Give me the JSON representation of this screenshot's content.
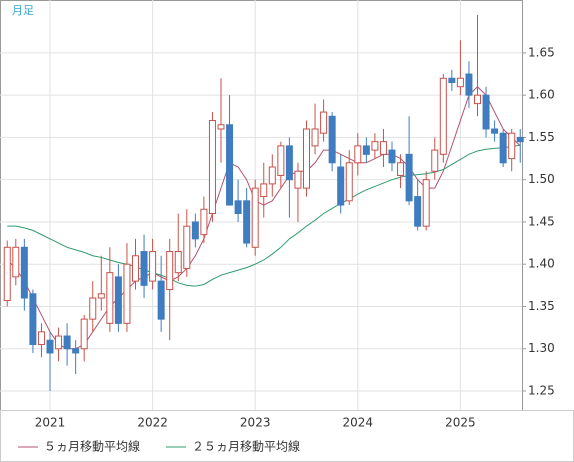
{
  "chart_data": {
    "type": "candlestick",
    "label": "月足",
    "categories": [
      null,
      null,
      null,
      null,
      null,
      "2021",
      null,
      null,
      null,
      null,
      null,
      null,
      null,
      null,
      null,
      null,
      null,
      "2022",
      null,
      null,
      null,
      null,
      null,
      null,
      null,
      null,
      null,
      null,
      null,
      "2023",
      null,
      null,
      null,
      null,
      null,
      null,
      null,
      null,
      null,
      null,
      null,
      "2024",
      null,
      null,
      null,
      null,
      null,
      null,
      null,
      null,
      null,
      null,
      null,
      "2025",
      null,
      null,
      null,
      null,
      null,
      null,
      null
    ],
    "open": [
      1.357,
      1.385,
      1.42,
      1.365,
      1.305,
      1.31,
      1.3,
      1.315,
      1.3,
      1.3,
      1.335,
      1.36,
      1.33,
      1.385,
      1.33,
      1.38,
      1.415,
      1.38,
      1.38,
      1.37,
      1.39,
      1.395,
      1.45,
      1.435,
      1.46,
      1.56,
      1.565,
      1.475,
      1.475,
      1.42,
      1.48,
      1.495,
      1.505,
      1.54,
      1.49,
      1.49,
      1.54,
      1.555,
      1.575,
      1.515,
      1.475,
      1.52,
      1.54,
      1.535,
      1.53,
      1.535,
      1.505,
      1.53,
      1.48,
      1.445,
      1.51,
      1.53,
      1.62,
      1.61,
      1.625,
      1.59,
      1.6,
      1.56,
      1.555,
      1.525,
      1.55
    ],
    "high": [
      1.428,
      1.43,
      1.43,
      1.37,
      1.33,
      1.32,
      1.325,
      1.33,
      1.31,
      1.34,
      1.38,
      1.41,
      1.42,
      1.4,
      1.425,
      1.43,
      1.435,
      1.43,
      1.41,
      1.43,
      1.46,
      1.465,
      1.46,
      1.48,
      1.58,
      1.62,
      1.6,
      1.5,
      1.49,
      1.5,
      1.52,
      1.53,
      1.545,
      1.55,
      1.52,
      1.57,
      1.59,
      1.595,
      1.58,
      1.53,
      1.535,
      1.555,
      1.55,
      1.555,
      1.56,
      1.545,
      1.53,
      1.575,
      1.5,
      1.51,
      1.55,
      1.625,
      1.63,
      1.665,
      1.64,
      1.695,
      1.61,
      1.57,
      1.56,
      1.56,
      1.56
    ],
    "low": [
      1.35,
      1.375,
      1.345,
      1.295,
      1.29,
      1.25,
      1.285,
      1.28,
      1.27,
      1.285,
      1.32,
      1.345,
      1.32,
      1.32,
      1.32,
      1.37,
      1.36,
      1.37,
      1.32,
      1.31,
      1.38,
      1.385,
      1.42,
      1.425,
      1.45,
      1.52,
      1.47,
      1.45,
      1.42,
      1.41,
      1.455,
      1.48,
      1.49,
      1.455,
      1.45,
      1.48,
      1.53,
      1.545,
      1.51,
      1.46,
      1.47,
      1.505,
      1.52,
      1.525,
      1.515,
      1.51,
      1.49,
      1.47,
      1.44,
      1.44,
      1.5,
      1.52,
      1.605,
      1.6,
      1.585,
      1.575,
      1.55,
      1.545,
      1.515,
      1.51,
      1.52
    ],
    "close": [
      1.42,
      1.42,
      1.36,
      1.305,
      1.32,
      1.295,
      1.315,
      1.3,
      1.295,
      1.335,
      1.36,
      1.365,
      1.39,
      1.33,
      1.4,
      1.41,
      1.375,
      1.415,
      1.335,
      1.415,
      1.415,
      1.445,
      1.43,
      1.465,
      1.57,
      1.565,
      1.47,
      1.46,
      1.425,
      1.49,
      1.495,
      1.515,
      1.54,
      1.5,
      1.51,
      1.56,
      1.56,
      1.58,
      1.52,
      1.47,
      1.52,
      1.54,
      1.53,
      1.545,
      1.545,
      1.52,
      1.52,
      1.475,
      1.445,
      1.5,
      1.535,
      1.62,
      1.615,
      1.62,
      1.6,
      1.6,
      1.56,
      1.555,
      1.52,
      1.555,
      1.545
    ],
    "up_color": "#c8524a",
    "down_color": "#3f7cc0",
    "series": [
      {
        "name": "５ヵ月移動平均線",
        "color": "#b4506e",
        "values": [
          1.405,
          1.395,
          1.38,
          1.36,
          1.34,
          1.32,
          1.305,
          1.3,
          1.3,
          1.305,
          1.32,
          1.335,
          1.35,
          1.36,
          1.37,
          1.38,
          1.385,
          1.39,
          1.385,
          1.38,
          1.385,
          1.395,
          1.41,
          1.43,
          1.46,
          1.49,
          1.52,
          1.515,
          1.5,
          1.475,
          1.47,
          1.475,
          1.49,
          1.505,
          1.51,
          1.51,
          1.52,
          1.535,
          1.535,
          1.53,
          1.525,
          1.52,
          1.52,
          1.525,
          1.53,
          1.53,
          1.525,
          1.515,
          1.5,
          1.49,
          1.49,
          1.51,
          1.54,
          1.57,
          1.6,
          1.61,
          1.6,
          1.58,
          1.56,
          1.55,
          1.54
        ]
      },
      {
        "name": "２５ヵ月移動平均線",
        "color": "#2e9c6c",
        "values": [
          1.445,
          1.445,
          1.443,
          1.44,
          1.435,
          1.43,
          1.425,
          1.42,
          1.417,
          1.414,
          1.41,
          1.408,
          1.405,
          1.402,
          1.4,
          1.397,
          1.393,
          1.39,
          1.387,
          1.383,
          1.378,
          1.375,
          1.374,
          1.376,
          1.382,
          1.387,
          1.39,
          1.393,
          1.396,
          1.4,
          1.405,
          1.412,
          1.42,
          1.43,
          1.437,
          1.445,
          1.452,
          1.46,
          1.466,
          1.472,
          1.477,
          1.483,
          1.488,
          1.492,
          1.496,
          1.5,
          1.503,
          1.505,
          1.506,
          1.507,
          1.509,
          1.512,
          1.518,
          1.524,
          1.53,
          1.534,
          1.536,
          1.537,
          1.538,
          1.539,
          1.541
        ]
      }
    ],
    "ylim": [
      1.2275,
      1.7126
    ],
    "yticks": [
      1.25,
      {
        "value": 1.3,
        "label": "1.30"
      },
      1.35,
      {
        "value": 1.4,
        "label": "1.40"
      },
      1.45,
      {
        "value": 1.5,
        "label": "1.50"
      },
      1.55,
      {
        "value": 1.6,
        "label": "1.60"
      },
      1.65
    ],
    "grid": true
  }
}
